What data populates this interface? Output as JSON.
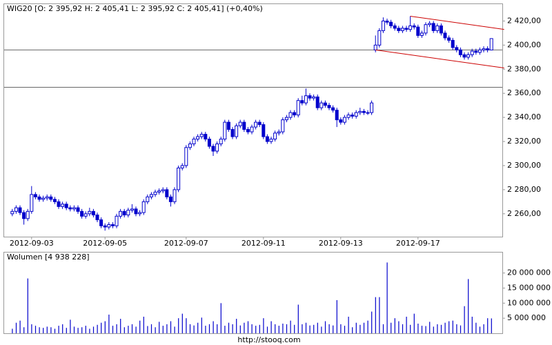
{
  "chart_data": [
    {
      "type": "candlestick",
      "title": "WIG20 [O: 2 395,92  H: 2 405,41  L: 2 395,92  C: 2 405,41] (+0,40%)",
      "color": "#0000cc",
      "open": [
        2260,
        2262,
        2265,
        2261,
        2256,
        2262,
        2276,
        2274,
        2272,
        2273,
        2274,
        2272,
        2270,
        2266,
        2268,
        2265,
        2264,
        2265,
        2262,
        2258,
        2260,
        2262,
        2259,
        2255,
        2250,
        2249,
        2251,
        2250,
        2258,
        2262,
        2259,
        2263,
        2264,
        2260,
        2261,
        2270,
        2274,
        2276,
        2278,
        2279,
        2280,
        2274,
        2270,
        2280,
        2298,
        2300,
        2315,
        2318,
        2322,
        2324,
        2326,
        2322,
        2316,
        2312,
        2318,
        2322,
        2336,
        2330,
        2324,
        2333,
        2336,
        2330,
        2328,
        2332,
        2336,
        2334,
        2324,
        2320,
        2322,
        2327,
        2328,
        2338,
        2340,
        2344,
        2342,
        2354,
        2352,
        2358,
        2356,
        2357,
        2348,
        2352,
        2350,
        2348,
        2346,
        2338,
        2336,
        2340,
        2342,
        2341,
        2344,
        2345,
        2344,
        2344,
        2396,
        2400,
        2412,
        2420,
        2419,
        2416,
        2414,
        2412,
        2414,
        2413,
        2416,
        2415,
        2408,
        2410,
        2417,
        2418,
        2412,
        2416,
        2410,
        2406,
        2404,
        2398,
        2396,
        2392,
        2390,
        2392,
        2395,
        2394,
        2396,
        2397,
        2395.92
      ],
      "high": [
        2264,
        2267,
        2267,
        2263,
        2264,
        2283,
        2278,
        2276,
        2275,
        2276,
        2276,
        2274,
        2272,
        2270,
        2270,
        2267,
        2267,
        2267,
        2264,
        2262,
        2265,
        2264,
        2261,
        2257,
        2252,
        2253,
        2253,
        2260,
        2264,
        2264,
        2265,
        2268,
        2266,
        2263,
        2272,
        2276,
        2278,
        2280,
        2281,
        2282,
        2282,
        2276,
        2282,
        2300,
        2302,
        2317,
        2320,
        2324,
        2326,
        2328,
        2328,
        2324,
        2318,
        2320,
        2324,
        2338,
        2338,
        2332,
        2335,
        2338,
        2338,
        2332,
        2334,
        2338,
        2338,
        2336,
        2326,
        2324,
        2329,
        2330,
        2340,
        2342,
        2346,
        2346,
        2356,
        2358,
        2364,
        2360,
        2359,
        2359,
        2354,
        2354,
        2352,
        2350,
        2348,
        2340,
        2342,
        2344,
        2344,
        2346,
        2348,
        2347,
        2346,
        2354,
        2408,
        2414,
        2423,
        2422,
        2421,
        2418,
        2416,
        2416,
        2416,
        2424,
        2418,
        2417,
        2412,
        2419,
        2420,
        2420,
        2418,
        2418,
        2412,
        2408,
        2406,
        2400,
        2398,
        2394,
        2394,
        2397,
        2397,
        2398,
        2399,
        2399,
        2405.41
      ],
      "low": [
        2258,
        2260,
        2259,
        2251,
        2254,
        2260,
        2272,
        2270,
        2270,
        2271,
        2270,
        2268,
        2264,
        2264,
        2263,
        2262,
        2262,
        2260,
        2256,
        2256,
        2258,
        2257,
        2253,
        2248,
        2246,
        2247,
        2248,
        2248,
        2256,
        2257,
        2257,
        2261,
        2258,
        2258,
        2259,
        2268,
        2272,
        2274,
        2276,
        2277,
        2272,
        2266,
        2268,
        2278,
        2296,
        2298,
        2313,
        2316,
        2320,
        2322,
        2320,
        2314,
        2308,
        2310,
        2316,
        2320,
        2328,
        2322,
        2322,
        2331,
        2328,
        2326,
        2326,
        2330,
        2332,
        2322,
        2318,
        2318,
        2320,
        2325,
        2326,
        2336,
        2338,
        2340,
        2340,
        2350,
        2350,
        2354,
        2354,
        2346,
        2346,
        2348,
        2346,
        2344,
        2332,
        2334,
        2334,
        2338,
        2339,
        2339,
        2342,
        2342,
        2342,
        2342,
        2394,
        2398,
        2410,
        2417,
        2414,
        2412,
        2410,
        2410,
        2411,
        2411,
        2413,
        2406,
        2406,
        2408,
        2415,
        2410,
        2410,
        2408,
        2404,
        2402,
        2396,
        2394,
        2390,
        2388,
        2388,
        2390,
        2392,
        2392,
        2394,
        2394,
        2395.92
      ],
      "close": [
        2262,
        2265,
        2261,
        2256,
        2262,
        2276,
        2274,
        2272,
        2273,
        2274,
        2272,
        2270,
        2266,
        2268,
        2265,
        2264,
        2265,
        2262,
        2258,
        2260,
        2262,
        2259,
        2255,
        2250,
        2249,
        2251,
        2250,
        2258,
        2262,
        2259,
        2263,
        2264,
        2260,
        2261,
        2270,
        2274,
        2276,
        2278,
        2279,
        2280,
        2274,
        2270,
        2280,
        2298,
        2300,
        2315,
        2318,
        2322,
        2324,
        2326,
        2322,
        2316,
        2312,
        2318,
        2322,
        2336,
        2330,
        2324,
        2333,
        2336,
        2330,
        2328,
        2332,
        2336,
        2334,
        2324,
        2320,
        2322,
        2327,
        2328,
        2338,
        2340,
        2344,
        2342,
        2354,
        2352,
        2358,
        2356,
        2357,
        2348,
        2352,
        2350,
        2348,
        2346,
        2338,
        2336,
        2340,
        2342,
        2341,
        2344,
        2345,
        2344,
        2344,
        2352,
        2400,
        2412,
        2420,
        2419,
        2416,
        2414,
        2412,
        2414,
        2413,
        2416,
        2415,
        2408,
        2410,
        2417,
        2418,
        2412,
        2416,
        2410,
        2406,
        2404,
        2398,
        2396,
        2392,
        2390,
        2392,
        2395,
        2394,
        2396,
        2397,
        2396,
        2405.41
      ],
      "xticks": [
        {
          "value": 5,
          "label": "2012-09-03"
        },
        {
          "value": 24,
          "label": "2012-09-05"
        },
        {
          "value": 45,
          "label": "2012-09-07"
        },
        {
          "value": 65,
          "label": "2012-09-11"
        },
        {
          "value": 85,
          "label": "2012-09-13"
        },
        {
          "value": 105,
          "label": "2012-09-17"
        }
      ],
      "ylim": [
        2241,
        2434
      ],
      "yticks": [
        {
          "value": 2260,
          "label": "2 260,00"
        },
        {
          "value": 2280,
          "label": "2 280,00"
        },
        {
          "value": 2300,
          "label": "2 300,00"
        },
        {
          "value": 2320,
          "label": "2 320,00"
        },
        {
          "value": 2340,
          "label": "2 340,00"
        },
        {
          "value": 2360,
          "label": "2 360,00"
        },
        {
          "value": 2380,
          "label": "2 380,00"
        },
        {
          "value": 2400,
          "label": "2 400,00"
        },
        {
          "value": 2420,
          "label": "2 420,00"
        }
      ],
      "hlines": [
        2396,
        2365
      ],
      "hline_color": "#666666",
      "trendlines": [
        {
          "x": [
            94,
            127.3
          ],
          "y": [
            2396,
            2381
          ]
        },
        {
          "x": [
            103,
            127.3
          ],
          "y": [
            2424,
            2413
          ]
        }
      ],
      "trend_color": "#cc0000"
    },
    {
      "type": "bar",
      "title": "Wolumen [4 938 228]",
      "color": "#0000cc",
      "values": [
        1500000,
        3500000,
        4200000,
        2000000,
        18200000,
        3000000,
        2500000,
        2000000,
        1800000,
        2200000,
        2000000,
        1500000,
        2500000,
        3000000,
        1800000,
        4500000,
        2200000,
        1800000,
        2000000,
        2500000,
        1500000,
        2200000,
        2800000,
        3500000,
        4000000,
        6200000,
        2500000,
        3000000,
        4800000,
        2000000,
        2500000,
        3000000,
        2200000,
        4200000,
        5500000,
        2400000,
        3000000,
        2000000,
        3800000,
        2500000,
        3000000,
        4000000,
        2200000,
        5000000,
        6500000,
        5000000,
        3000000,
        2600000,
        3500000,
        5200000,
        2500000,
        3000000,
        4000000,
        3000000,
        10000000,
        2500000,
        3500000,
        3000000,
        4800000,
        2600000,
        3500000,
        4000000,
        3000000,
        2500000,
        2800000,
        5000000,
        2200000,
        4000000,
        3000000,
        2500000,
        3200000,
        3000000,
        4200000,
        2800000,
        9500000,
        3000000,
        3500000,
        2600000,
        2800000,
        3500000,
        2200000,
        4000000,
        3000000,
        2600000,
        11000000,
        3000000,
        2500000,
        5500000,
        2000000,
        3500000,
        2800000,
        3500000,
        4200000,
        7200000,
        12000000,
        12000000,
        3000000,
        23500000,
        3500000,
        5000000,
        4000000,
        3000000,
        5500000,
        2800000,
        6500000,
        3200000,
        2500000,
        2400000,
        3800000,
        2200000,
        3000000,
        2800000,
        3500000,
        4000000,
        4200000,
        3000000,
        2600000,
        9000000,
        18000000,
        5500000,
        3500000,
        2200000,
        3000000,
        5000000,
        4938228
      ],
      "ylim": [
        0,
        26800000
      ],
      "yticks": [
        {
          "value": 5000000,
          "label": "5 000 000"
        },
        {
          "value": 10000000,
          "label": "10 000 000"
        },
        {
          "value": 15000000,
          "label": "15 000 000"
        },
        {
          "value": 20000000,
          "label": "20 000 000"
        }
      ]
    }
  ],
  "footer": "http://stooq.com"
}
